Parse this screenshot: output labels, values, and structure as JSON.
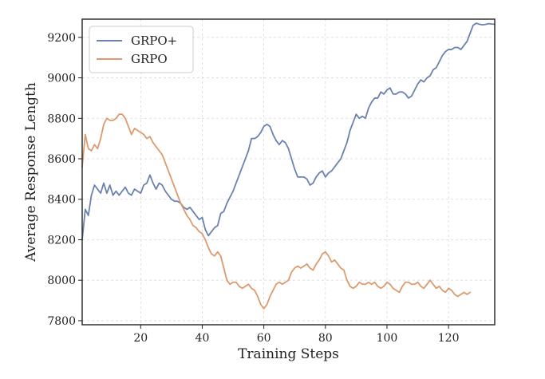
{
  "chart_data": {
    "type": "line",
    "title": "",
    "xlabel": "Training Steps",
    "ylabel": "Average Response Length",
    "xlim": [
      1,
      135
    ],
    "ylim": [
      7780,
      9290
    ],
    "x_ticks": [
      "20",
      "40",
      "60",
      "80",
      "100",
      "120"
    ],
    "y_ticks": [
      "7800",
      "8000",
      "8200",
      "8400",
      "8600",
      "8800",
      "9000",
      "9200"
    ],
    "grid": true,
    "legend_position": "top-left",
    "series": [
      {
        "name": "GRPO+",
        "color": "#6b82b0",
        "x": [
          1,
          2,
          3,
          4,
          5,
          6,
          7,
          8,
          9,
          10,
          11,
          12,
          13,
          14,
          15,
          16,
          17,
          18,
          19,
          20,
          21,
          22,
          23,
          24,
          25,
          26,
          27,
          28,
          29,
          30,
          31,
          32,
          33,
          34,
          35,
          36,
          37,
          38,
          39,
          40,
          41,
          42,
          43,
          44,
          45,
          46,
          47,
          48,
          49,
          50,
          51,
          52,
          53,
          54,
          55,
          56,
          57,
          58,
          59,
          60,
          61,
          62,
          63,
          64,
          65,
          66,
          67,
          68,
          69,
          70,
          71,
          72,
          73,
          74,
          75,
          76,
          77,
          78,
          79,
          80,
          81,
          82,
          83,
          84,
          85,
          86,
          87,
          88,
          89,
          90,
          91,
          92,
          93,
          94,
          95,
          96,
          97,
          98,
          99,
          100,
          101,
          102,
          103,
          104,
          105,
          106,
          107,
          108,
          109,
          110,
          111,
          112,
          113,
          114,
          115,
          116,
          117,
          118,
          119,
          120,
          121,
          122,
          123,
          124,
          125,
          126,
          127,
          128,
          129,
          130,
          131,
          132,
          133,
          134,
          135
        ],
        "values": [
          8200,
          8350,
          8320,
          8420,
          8470,
          8450,
          8430,
          8480,
          8430,
          8470,
          8420,
          8440,
          8420,
          8440,
          8460,
          8430,
          8420,
          8450,
          8440,
          8430,
          8470,
          8480,
          8520,
          8480,
          8450,
          8480,
          8470,
          8440,
          8420,
          8400,
          8390,
          8390,
          8380,
          8360,
          8350,
          8360,
          8340,
          8320,
          8300,
          8310,
          8250,
          8220,
          8240,
          8260,
          8270,
          8330,
          8340,
          8380,
          8410,
          8440,
          8480,
          8520,
          8560,
          8600,
          8640,
          8700,
          8700,
          8710,
          8730,
          8760,
          8770,
          8760,
          8720,
          8690,
          8670,
          8690,
          8680,
          8650,
          8600,
          8550,
          8510,
          8510,
          8510,
          8500,
          8470,
          8480,
          8510,
          8530,
          8540,
          8510,
          8530,
          8540,
          8560,
          8580,
          8600,
          8640,
          8680,
          8740,
          8780,
          8820,
          8800,
          8810,
          8800,
          8850,
          8880,
          8900,
          8900,
          8930,
          8920,
          8940,
          8950,
          8920,
          8920,
          8930,
          8930,
          8920,
          8900,
          8910,
          8940,
          8970,
          8990,
          8980,
          9000,
          9010,
          9040,
          9050,
          9080,
          9110,
          9130,
          9140,
          9140,
          9150,
          9150,
          9140,
          9160,
          9180,
          9220,
          9260,
          9270,
          9265,
          9262,
          9264,
          9268,
          9266,
          9265
        ]
      },
      {
        "name": "GRPO",
        "color": "#dc9a6e",
        "x": [
          1,
          2,
          3,
          4,
          5,
          6,
          7,
          8,
          9,
          10,
          11,
          12,
          13,
          14,
          15,
          16,
          17,
          18,
          19,
          20,
          21,
          22,
          23,
          24,
          25,
          26,
          27,
          28,
          29,
          30,
          31,
          32,
          33,
          34,
          35,
          36,
          37,
          38,
          39,
          40,
          41,
          42,
          43,
          44,
          45,
          46,
          47,
          48,
          49,
          50,
          51,
          52,
          53,
          54,
          55,
          56,
          57,
          58,
          59,
          60,
          61,
          62,
          63,
          64,
          65,
          66,
          67,
          68,
          69,
          70,
          71,
          72,
          73,
          74,
          75,
          76,
          77,
          78,
          79,
          80,
          81,
          82,
          83,
          84,
          85,
          86,
          87,
          88,
          89,
          90,
          91,
          92,
          93,
          94,
          95,
          96,
          97,
          98,
          99,
          100,
          101,
          102,
          103,
          104,
          105,
          106,
          107,
          108,
          109,
          110,
          111,
          112,
          113,
          114,
          115,
          116,
          117,
          118,
          119,
          120,
          121,
          122,
          123,
          124,
          125,
          126,
          127
        ],
        "values": [
          8560,
          8720,
          8650,
          8640,
          8670,
          8650,
          8700,
          8770,
          8800,
          8790,
          8790,
          8800,
          8820,
          8820,
          8800,
          8760,
          8720,
          8750,
          8740,
          8730,
          8720,
          8700,
          8710,
          8680,
          8660,
          8640,
          8620,
          8580,
          8540,
          8500,
          8460,
          8420,
          8380,
          8350,
          8320,
          8300,
          8270,
          8260,
          8240,
          8230,
          8200,
          8160,
          8130,
          8120,
          8140,
          8120,
          8060,
          8000,
          7980,
          7990,
          7990,
          7970,
          7960,
          7970,
          7980,
          7960,
          7950,
          7920,
          7880,
          7860,
          7880,
          7920,
          7950,
          7980,
          7990,
          7980,
          7990,
          8000,
          8040,
          8060,
          8070,
          8060,
          8070,
          8080,
          8060,
          8050,
          8080,
          8100,
          8130,
          8140,
          8120,
          8090,
          8100,
          8080,
          8060,
          8050,
          8000,
          7970,
          7960,
          7970,
          7990,
          7980,
          7980,
          7990,
          7980,
          7990,
          7970,
          7960,
          7970,
          7990,
          7980,
          7960,
          7950,
          7940,
          7970,
          7990,
          7990,
          7980,
          7980,
          7990,
          7970,
          7960,
          7980,
          8000,
          7980,
          7960,
          7970,
          7950,
          7940,
          7960,
          7950,
          7930,
          7920,
          7930,
          7940,
          7930,
          7940
        ]
      }
    ]
  }
}
